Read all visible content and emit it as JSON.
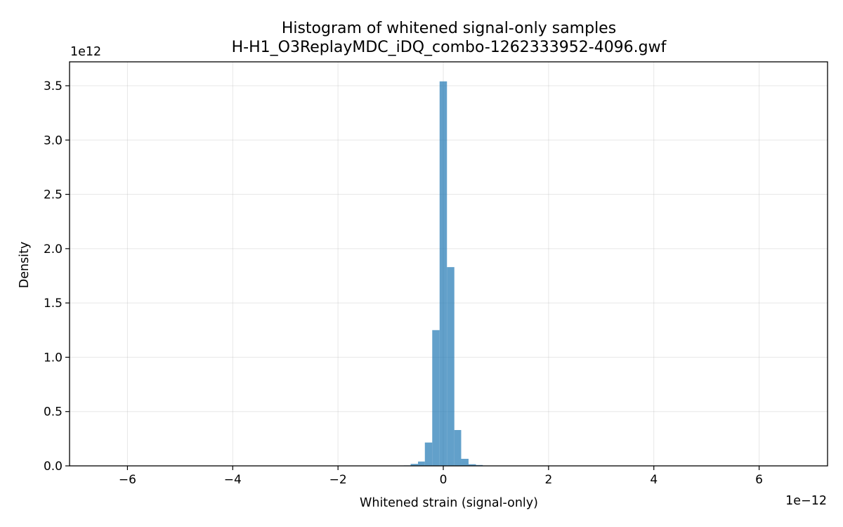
{
  "chart_data": {
    "type": "bar",
    "title": "Histogram of whitened signal-only samples",
    "subtitle": "H-H1_O3ReplayMDC_iDQ_combo-1262333952-4096.gwf",
    "xlabel": "Whitened strain (signal-only)",
    "ylabel": "Density",
    "x_offset_label": "1e−12",
    "y_offset_label": "1e12",
    "xlim": [
      -7.1,
      7.3
    ],
    "ylim": [
      0,
      3.72
    ],
    "x_ticks": [
      -6,
      -4,
      -2,
      0,
      2,
      4,
      6
    ],
    "x_tick_labels": [
      "−6",
      "−4",
      "−2",
      "0",
      "2",
      "4",
      "6"
    ],
    "y_ticks": [
      0.0,
      0.5,
      1.0,
      1.5,
      2.0,
      2.5,
      3.0,
      3.5
    ],
    "y_tick_labels": [
      "0.0",
      "0.5",
      "1.0",
      "1.5",
      "2.0",
      "2.5",
      "3.0",
      "3.5"
    ],
    "grid": true,
    "bar_color": "#1f77b4",
    "bar_opacity": 0.7,
    "bins": [
      {
        "x0": -0.75,
        "x1": -0.62,
        "value": 0.004
      },
      {
        "x0": -0.62,
        "x1": -0.48,
        "value": 0.018
      },
      {
        "x0": -0.48,
        "x1": -0.35,
        "value": 0.04
      },
      {
        "x0": -0.35,
        "x1": -0.21,
        "value": 0.215
      },
      {
        "x0": -0.21,
        "x1": -0.07,
        "value": 1.25
      },
      {
        "x0": -0.07,
        "x1": 0.07,
        "value": 3.54
      },
      {
        "x0": 0.07,
        "x1": 0.21,
        "value": 1.83
      },
      {
        "x0": 0.21,
        "x1": 0.34,
        "value": 0.33
      },
      {
        "x0": 0.34,
        "x1": 0.48,
        "value": 0.065
      },
      {
        "x0": 0.48,
        "x1": 0.62,
        "value": 0.015
      },
      {
        "x0": 0.62,
        "x1": 0.75,
        "value": 0.008
      }
    ]
  }
}
